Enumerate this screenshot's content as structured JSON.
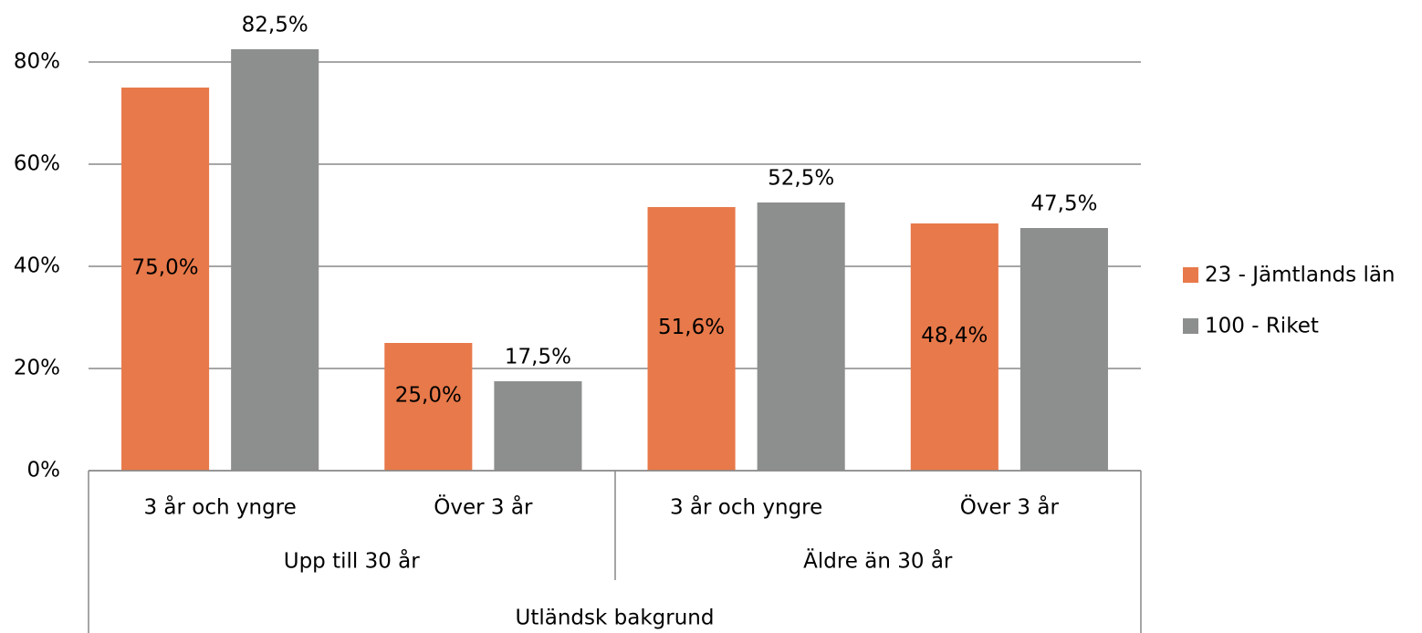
{
  "chart_data": {
    "type": "bar",
    "categories": [
      "3 år och yngre",
      "Över 3 år",
      "3 år och yngre",
      "Över 3 år"
    ],
    "category_groups": [
      "Upp till 30 år",
      "Äldre än 30 år"
    ],
    "outer_category": "Utländsk bakgrund",
    "series": [
      {
        "name": "23 - Jämtlands län",
        "color": "#e8794a",
        "values": [
          75.0,
          25.0,
          51.6,
          48.4
        ],
        "value_labels": [
          "75,0%",
          "25,0%",
          "51,6%",
          "48,4%"
        ]
      },
      {
        "name": "100 - Riket",
        "color": "#8c8f8d",
        "values": [
          82.5,
          17.5,
          52.5,
          47.5
        ],
        "value_labels": [
          "82,5%",
          "17,5%",
          "52,5%",
          "47,5%"
        ]
      }
    ],
    "ylim": [
      0,
      80
    ],
    "yticks": [
      {
        "value": 0,
        "label": "0%"
      },
      {
        "value": 20,
        "label": "20%"
      },
      {
        "value": 40,
        "label": "40%"
      },
      {
        "value": 60,
        "label": "60%"
      },
      {
        "value": 80,
        "label": "80%"
      }
    ],
    "grid": true,
    "legend": "right"
  }
}
